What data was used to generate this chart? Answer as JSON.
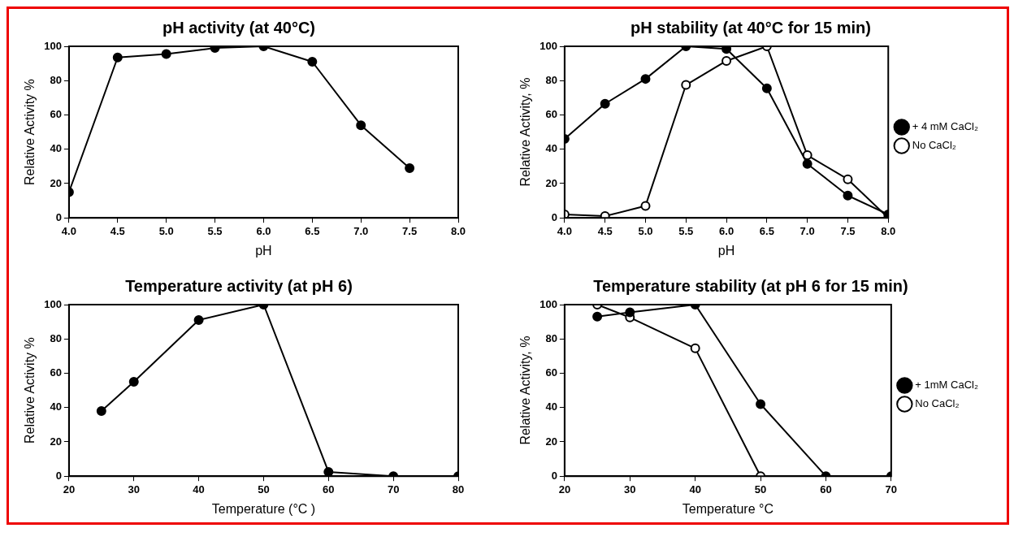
{
  "chart_data": [
    {
      "type": "line",
      "title": "pH activity (at 40°C)",
      "xlabel": "pH",
      "ylabel": "Relative Activity %",
      "xlim": [
        4,
        8
      ],
      "xticks": [
        {
          "value": 4,
          "label": "4.0"
        },
        {
          "value": 4.5,
          "label": "4.5"
        },
        {
          "value": 5,
          "label": "5.0"
        },
        {
          "value": 5.5,
          "label": "5.5"
        },
        {
          "value": 6,
          "label": "6.0"
        },
        {
          "value": 6.5,
          "label": "6.5"
        },
        {
          "value": 7,
          "label": "7.0"
        },
        {
          "value": 7.5,
          "label": "7.5"
        },
        {
          "value": 8,
          "label": "8.0"
        }
      ],
      "ylim": [
        0,
        100
      ],
      "yticks": [
        0,
        20,
        40,
        60,
        80,
        100
      ],
      "grid": false,
      "legend": false,
      "marker": "circle",
      "x": [
        4,
        4.5,
        5,
        5.5,
        6,
        6.5,
        7,
        7.5
      ],
      "series": [
        {
          "color": "#000000",
          "values": [
            15,
            93.5,
            95.5,
            99,
            100,
            91,
            54,
            29
          ]
        }
      ]
    },
    {
      "type": "line",
      "title": "pH stability (at 40°C for 15 min)",
      "xlabel": "pH",
      "ylabel": "Relative Activity, %",
      "xlim": [
        4,
        8
      ],
      "xticks": [
        {
          "value": 4,
          "label": "4.0"
        },
        {
          "value": 4.5,
          "label": "4.5"
        },
        {
          "value": 5,
          "label": "5.0"
        },
        {
          "value": 5.5,
          "label": "5.5"
        },
        {
          "value": 6,
          "label": "6.0"
        },
        {
          "value": 6.5,
          "label": "6.5"
        },
        {
          "value": 7,
          "label": "7.0"
        },
        {
          "value": 7.5,
          "label": "7.5"
        },
        {
          "value": 8,
          "label": "8.0"
        }
      ],
      "ylim": [
        0,
        100
      ],
      "yticks": [
        0,
        20,
        40,
        60,
        80,
        100
      ],
      "grid": false,
      "legend": "right",
      "marker": "circle",
      "x": [
        4,
        4.5,
        5,
        5.5,
        6,
        6.5,
        7,
        7.5,
        8
      ],
      "series": [
        {
          "name": "+ 4 mM CaCl₂",
          "color": "#000000",
          "values": [
            46,
            66.5,
            81,
            100,
            98.5,
            75.5,
            31.5,
            13,
            2
          ]
        },
        {
          "name": "No CaCl₂",
          "color": "#000000",
          "values": [
            2,
            1,
            7,
            77.5,
            91.5,
            100,
            36.5,
            22.5,
            0
          ]
        }
      ]
    },
    {
      "type": "line",
      "title": "Temperature activity (at pH 6)",
      "xlabel": "Temperature (°C )",
      "ylabel": "Relative Activity %",
      "xlim": [
        20,
        80
      ],
      "xticks": [
        20,
        30,
        40,
        50,
        60,
        70,
        80
      ],
      "ylim": [
        0,
        100
      ],
      "yticks": [
        0,
        20,
        40,
        60,
        80,
        100
      ],
      "grid": false,
      "legend": false,
      "marker": "circle",
      "x": [
        25,
        30,
        40,
        50,
        60,
        70,
        80
      ],
      "series": [
        {
          "color": "#000000",
          "values": [
            38,
            55,
            91,
            100,
            2.5,
            0,
            0
          ]
        }
      ]
    },
    {
      "type": "line",
      "title": "Temperature stability (at pH 6 for 15 min)",
      "xlabel": "Temperature °C",
      "ylabel": "Relative Activity, %",
      "xlim": [
        20,
        70
      ],
      "xticks": [
        20,
        30,
        40,
        50,
        60,
        70
      ],
      "ylim": [
        0,
        100
      ],
      "yticks": [
        0,
        20,
        40,
        60,
        80,
        100
      ],
      "grid": false,
      "legend": "right",
      "marker": "circle",
      "series": [
        {
          "name": "+ 1mM CaCl₂",
          "color": "#000000",
          "x": [
            25,
            30,
            40,
            50,
            60,
            70
          ],
          "values": [
            93,
            95.5,
            100,
            42,
            0,
            0
          ]
        },
        {
          "name": "No CaCl₂",
          "color": "#000000",
          "x": [
            25,
            30,
            40,
            50
          ],
          "values": [
            100,
            92.5,
            74.5,
            0
          ]
        }
      ]
    }
  ]
}
